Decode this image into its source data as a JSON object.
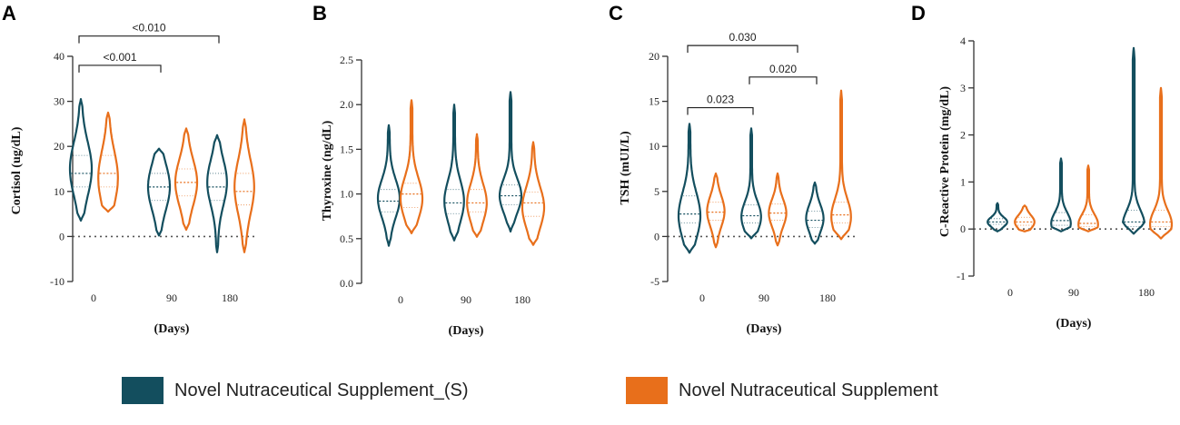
{
  "colors": {
    "series_s": "#134e5e",
    "series_n": "#e86f1b",
    "axis": "#333333",
    "zero_line": "#555555"
  },
  "legend": [
    {
      "label": "Novel Nutraceutical Supplement_(S)",
      "color": "#134e5e"
    },
    {
      "label": "Novel Nutraceutical Supplement",
      "color": "#e86f1b"
    }
  ],
  "chart_data": [
    {
      "panel": "A",
      "type": "violin",
      "ylabel": "Cortisol (ug/dL)",
      "xlabel": "(Days)",
      "categories": [
        "0",
        "90",
        "180"
      ],
      "ylim": [
        -10,
        40
      ],
      "yticks": [
        "-10",
        "0",
        "10",
        "20",
        "30",
        "40"
      ],
      "ytick_values": [
        -10,
        0,
        10,
        20,
        30,
        40
      ],
      "zero_line": true,
      "series": [
        {
          "name": "Novel Nutraceutical Supplement_(S)",
          "violins": [
            {
              "min": 3.5,
              "max": 30.5,
              "median": 14,
              "q1": 11,
              "q3": 18,
              "mode": 15,
              "width": 1.0
            },
            {
              "min": 0.2,
              "max": 19.5,
              "median": 11,
              "q1": 8,
              "q3": 14,
              "mode": 11,
              "width": 1.0
            },
            {
              "min": -3.5,
              "max": 22.5,
              "median": 11,
              "q1": 8,
              "q3": 14,
              "mode": 12,
              "width": 0.9
            }
          ]
        },
        {
          "name": "Novel Nutraceutical Supplement",
          "violins": [
            {
              "min": 5.5,
              "max": 27.5,
              "median": 14,
              "q1": 11,
              "q3": 18,
              "mode": 13,
              "width": 0.9
            },
            {
              "min": 1.5,
              "max": 24,
              "median": 12,
              "q1": 9,
              "q3": 15,
              "mode": 12,
              "width": 1.0
            },
            {
              "min": -3.5,
              "max": 26,
              "median": 10,
              "q1": 7,
              "q3": 14,
              "mode": 11,
              "width": 0.9
            }
          ]
        }
      ],
      "annotations": [
        {
          "text": "<0.001",
          "from_group": 0,
          "to_group": 1,
          "y": 38
        },
        {
          "text": "<0.010",
          "from_group": 0,
          "to_group": 2,
          "y": 44.5
        }
      ]
    },
    {
      "panel": "B",
      "type": "violin",
      "ylabel": "Thyroxine (ng/dL)",
      "xlabel": "(Days)",
      "categories": [
        "0",
        "90",
        "180"
      ],
      "ylim": [
        0,
        2.5
      ],
      "yticks": [
        "0.0",
        "0.5",
        "1.0",
        "1.5",
        "2.0",
        "2.5"
      ],
      "ytick_values": [
        0,
        0.5,
        1.0,
        1.5,
        2.0,
        2.5
      ],
      "zero_line": false,
      "series": [
        {
          "name": "Novel Nutraceutical Supplement_(S)",
          "violins": [
            {
              "min": 0.42,
              "max": 1.77,
              "median": 0.92,
              "q1": 0.8,
              "q3": 1.05,
              "mode": 0.95,
              "width": 1.0
            },
            {
              "min": 0.48,
              "max": 2.0,
              "median": 0.9,
              "q1": 0.78,
              "q3": 1.05,
              "mode": 0.92,
              "width": 0.9
            },
            {
              "min": 0.58,
              "max": 2.14,
              "median": 0.98,
              "q1": 0.88,
              "q3": 1.1,
              "mode": 0.98,
              "width": 1.0
            }
          ]
        },
        {
          "name": "Novel Nutraceutical Supplement",
          "violins": [
            {
              "min": 0.56,
              "max": 2.05,
              "median": 1.0,
              "q1": 0.85,
              "q3": 1.12,
              "mode": 0.95,
              "width": 1.0
            },
            {
              "min": 0.52,
              "max": 1.67,
              "median": 0.9,
              "q1": 0.8,
              "q3": 1.05,
              "mode": 0.9,
              "width": 0.9
            },
            {
              "min": 0.43,
              "max": 1.58,
              "median": 0.9,
              "q1": 0.75,
              "q3": 1.02,
              "mode": 0.85,
              "width": 1.0
            }
          ]
        }
      ],
      "annotations": []
    },
    {
      "panel": "C",
      "type": "violin",
      "ylabel": "TSH (mUI/L)",
      "xlabel": "(Days)",
      "categories": [
        "0",
        "90",
        "180"
      ],
      "ylim": [
        -5,
        20
      ],
      "yticks": [
        "-5",
        "0",
        "5",
        "10",
        "15",
        "20"
      ],
      "ytick_values": [
        -5,
        0,
        5,
        10,
        15,
        20
      ],
      "zero_line": true,
      "series": [
        {
          "name": "Novel Nutraceutical Supplement_(S)",
          "violins": [
            {
              "min": -1.8,
              "max": 12.5,
              "median": 2.5,
              "q1": 1.5,
              "q3": 4.5,
              "mode": 2.3,
              "width": 1.0
            },
            {
              "min": -0.2,
              "max": 12.0,
              "median": 2.3,
              "q1": 1.5,
              "q3": 3.5,
              "mode": 2.2,
              "width": 0.9
            },
            {
              "min": -0.8,
              "max": 6.0,
              "median": 1.8,
              "q1": 1.0,
              "q3": 2.8,
              "mode": 2.0,
              "width": 0.8
            }
          ]
        },
        {
          "name": "Novel Nutraceutical Supplement",
          "violins": [
            {
              "min": -1.2,
              "max": 7.0,
              "median": 2.7,
              "q1": 1.8,
              "q3": 3.8,
              "mode": 2.8,
              "width": 0.8
            },
            {
              "min": -1.0,
              "max": 7.0,
              "median": 2.6,
              "q1": 1.8,
              "q3": 3.6,
              "mode": 2.6,
              "width": 0.8
            },
            {
              "min": -0.3,
              "max": 16.2,
              "median": 2.4,
              "q1": 1.5,
              "q3": 3.8,
              "mode": 2.2,
              "width": 0.9
            }
          ]
        }
      ],
      "annotations": [
        {
          "text": "0.023",
          "from_group": 0,
          "to_group": 1,
          "y": 14.3
        },
        {
          "text": "0.020",
          "from_group": 1,
          "to_group": 2,
          "y": 17.7
        },
        {
          "text": "0.030",
          "from_group": 0,
          "to_group": 1.7,
          "y": 21.2
        }
      ]
    },
    {
      "panel": "D",
      "type": "violin",
      "ylabel": "C-Reactive Protein (mg/dL)",
      "xlabel": "(Days)",
      "categories": [
        "0",
        "90",
        "180"
      ],
      "ylim": [
        -1,
        4
      ],
      "yticks": [
        "-1",
        "0",
        "1",
        "2",
        "3",
        "4"
      ],
      "ytick_values": [
        -1,
        0,
        1,
        2,
        3,
        4
      ],
      "zero_line": true,
      "series": [
        {
          "name": "Novel Nutraceutical Supplement_(S)",
          "violins": [
            {
              "min": -0.05,
              "max": 0.55,
              "median": 0.15,
              "q1": 0.1,
              "q3": 0.22,
              "mode": 0.15,
              "width": 0.9
            },
            {
              "min": -0.05,
              "max": 1.5,
              "median": 0.18,
              "q1": 0.08,
              "q3": 0.35,
              "mode": 0.12,
              "width": 0.9
            },
            {
              "min": -0.1,
              "max": 3.85,
              "median": 0.15,
              "q1": 0.05,
              "q3": 0.4,
              "mode": 0.1,
              "width": 1.0
            }
          ]
        },
        {
          "name": "Novel Nutraceutical Supplement",
          "violins": [
            {
              "min": -0.05,
              "max": 0.5,
              "median": 0.15,
              "q1": 0.08,
              "q3": 0.25,
              "mode": 0.15,
              "width": 0.9
            },
            {
              "min": -0.05,
              "max": 1.35,
              "median": 0.12,
              "q1": 0.05,
              "q3": 0.3,
              "mode": 0.1,
              "width": 0.9
            },
            {
              "min": -0.2,
              "max": 3.0,
              "median": 0.15,
              "q1": 0.05,
              "q3": 0.4,
              "mode": 0.1,
              "width": 1.0
            }
          ]
        }
      ],
      "annotations": []
    }
  ]
}
